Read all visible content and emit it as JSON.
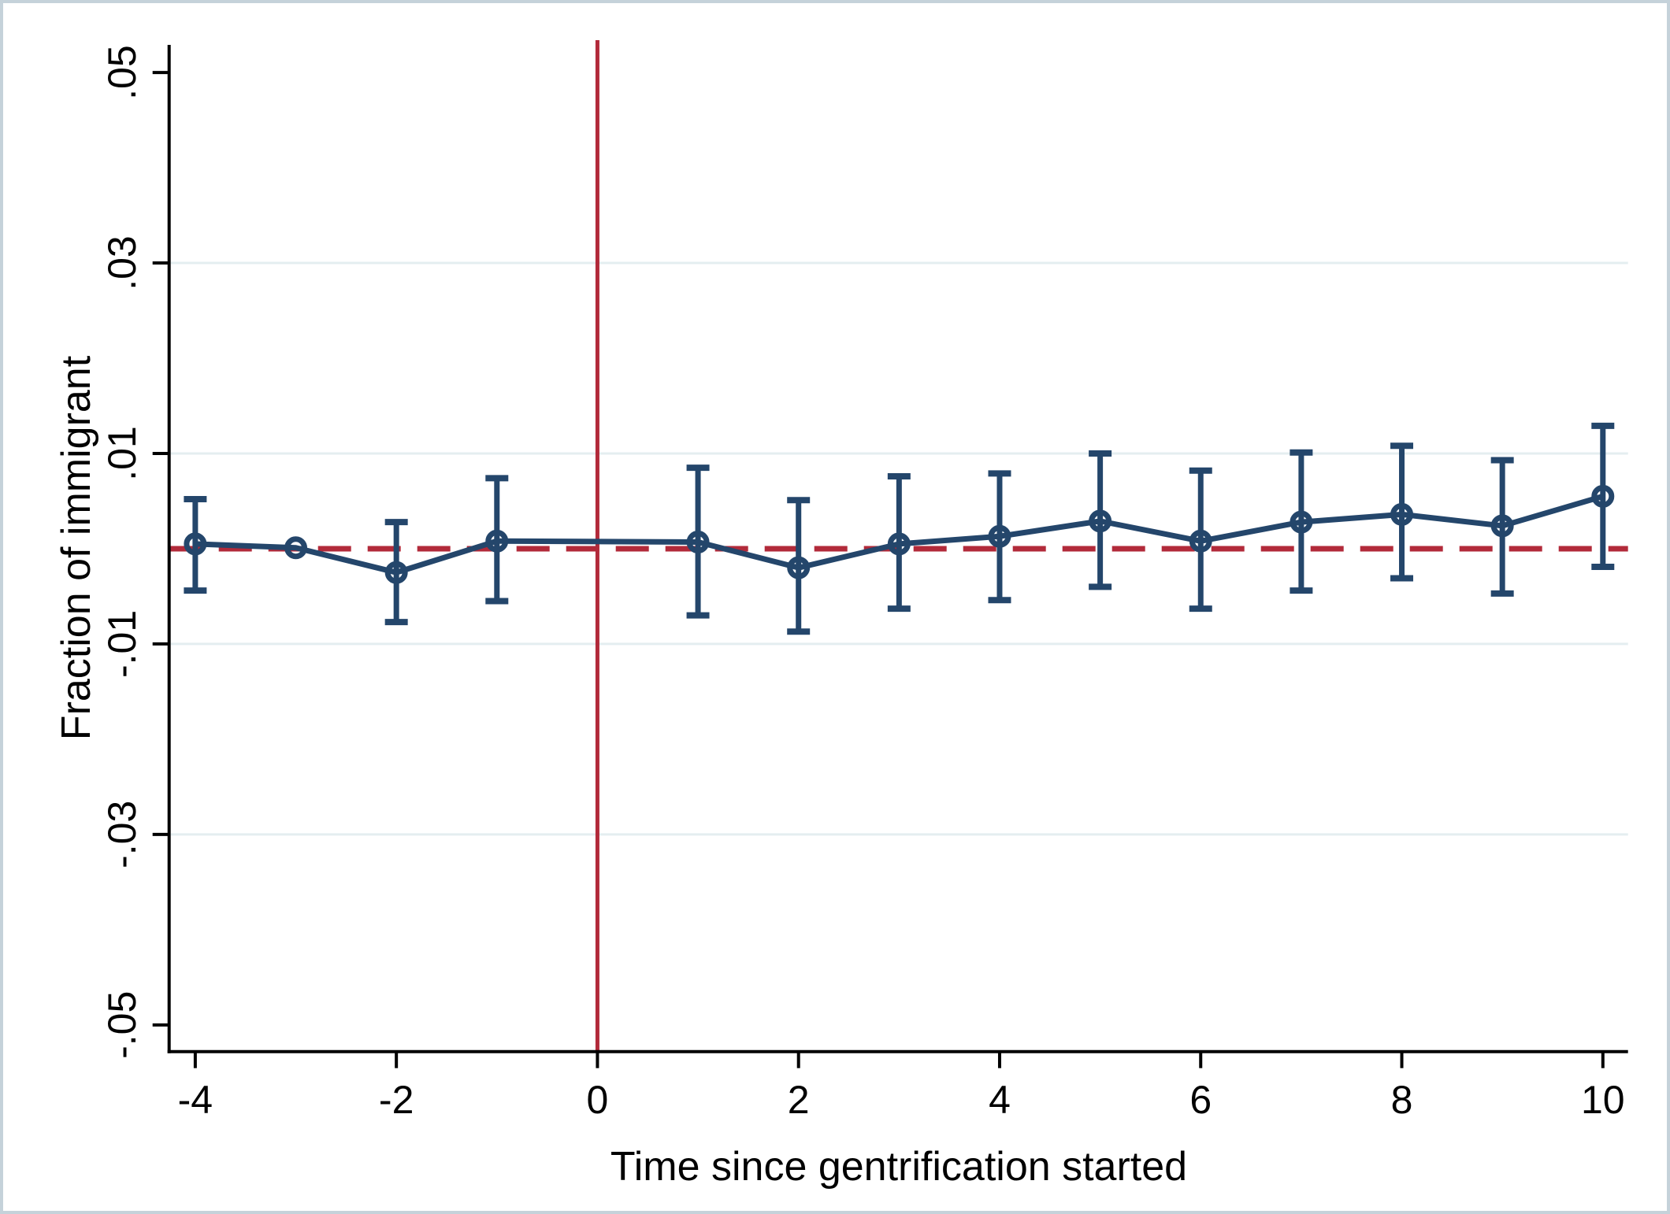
{
  "chart_data": {
    "type": "line",
    "subtype": "event-study-with-error-bars",
    "title": "",
    "xlabel": "Time since gentrification started",
    "ylabel": "Fraction of immigrant",
    "x_ticks": [
      -4,
      -2,
      0,
      2,
      4,
      6,
      8,
      10
    ],
    "x_tick_labels": [
      "-4",
      "-2",
      "0",
      "2",
      "4",
      "6",
      "8",
      "10"
    ],
    "y_ticks": [
      0.05,
      0.03,
      0.01,
      -0.01,
      -0.03,
      -0.05
    ],
    "y_tick_labels": [
      ".05",
      ".03",
      ".01",
      "-.01",
      "-.03",
      "-.05"
    ],
    "xlim": [
      -4.26,
      10.25
    ],
    "ylim": [
      -0.0528,
      0.0529
    ],
    "grid": "horizontal-only",
    "gridlines_y": [
      0.03,
      0.01,
      -0.01,
      -0.03
    ],
    "legend": "none",
    "reference_lines": {
      "vertical": {
        "x": 0,
        "style": "solid",
        "color": "#B22A3A"
      },
      "horizontal": {
        "y": 0,
        "style": "dashed",
        "color": "#B22A3A"
      }
    },
    "series": [
      {
        "name": "Fraction of immigrant",
        "marker": "open-circle",
        "color": "#24466B",
        "points": [
          {
            "t": -4,
            "estimate": 0.0005,
            "ci_low": -0.0044,
            "ci_high": 0.0052
          },
          {
            "t": -3,
            "estimate": 0.0001,
            "ci_low": null,
            "ci_high": null
          },
          {
            "t": -2,
            "estimate": -0.0025,
            "ci_low": -0.0077,
            "ci_high": 0.0028
          },
          {
            "t": -1,
            "estimate": 0.0008,
            "ci_low": -0.0055,
            "ci_high": 0.0074
          },
          {
            "t": 1,
            "estimate": 0.0007,
            "ci_low": -0.007,
            "ci_high": 0.0085
          },
          {
            "t": 2,
            "estimate": -0.002,
            "ci_low": -0.0087,
            "ci_high": 0.0051
          },
          {
            "t": 3,
            "estimate": 0.0005,
            "ci_low": -0.0063,
            "ci_high": 0.0076
          },
          {
            "t": 4,
            "estimate": 0.0013,
            "ci_low": -0.0054,
            "ci_high": 0.0079
          },
          {
            "t": 5,
            "estimate": 0.0029,
            "ci_low": -0.004,
            "ci_high": 0.01
          },
          {
            "t": 6,
            "estimate": 0.0008,
            "ci_low": -0.0063,
            "ci_high": 0.0082
          },
          {
            "t": 7,
            "estimate": 0.0028,
            "ci_low": -0.0044,
            "ci_high": 0.0101
          },
          {
            "t": 8,
            "estimate": 0.0036,
            "ci_low": -0.0031,
            "ci_high": 0.0108
          },
          {
            "t": 9,
            "estimate": 0.0024,
            "ci_low": -0.0047,
            "ci_high": 0.0093
          },
          {
            "t": 10,
            "estimate": 0.0055,
            "ci_low": -0.0019,
            "ci_high": 0.0129
          }
        ]
      }
    ],
    "colors": {
      "series": "#24466B",
      "reference": "#B22A3A",
      "gridline": "#E4EEF0",
      "axis": "#000000",
      "canvas_border": "#C5D2DA"
    }
  }
}
